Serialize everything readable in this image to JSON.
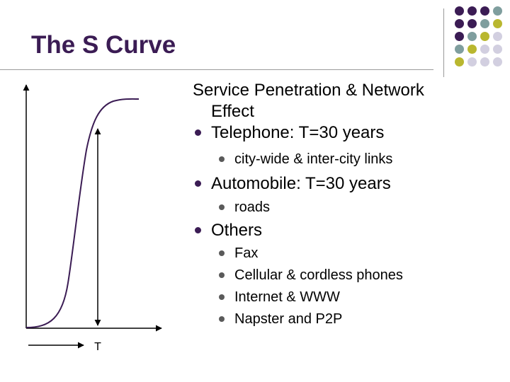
{
  "slide": {
    "title": "The S Curve",
    "graph_label": "T",
    "intro_line1": "Service Penetration & Network",
    "intro_line2": "Effect",
    "bullets": [
      {
        "text": "Telephone:  T=30 years",
        "sub": [
          "city-wide & inter-city links"
        ]
      },
      {
        "text": "Automobile:  T=30 years",
        "sub": [
          "roads"
        ]
      },
      {
        "text": "Others",
        "sub": [
          "Fax",
          "Cellular & cordless phones",
          "Internet & WWW",
          "Napster and P2P"
        ]
      }
    ]
  },
  "colors": {
    "title": "#3b1c54",
    "curve": "#3b1c54",
    "dot_purple": "#3b1c54",
    "dot_teal": "#7f9e9e",
    "dot_olive": "#b9b72f",
    "dot_lavender": "#d2cfe0"
  }
}
